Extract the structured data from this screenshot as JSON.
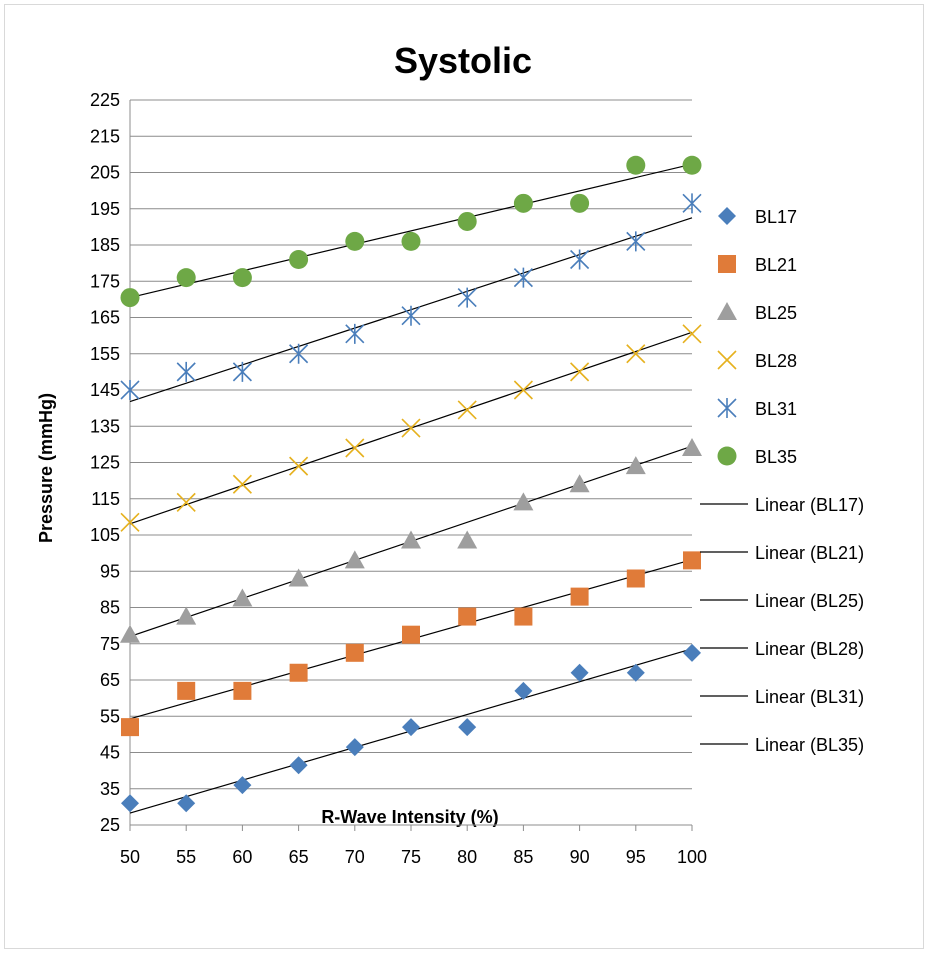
{
  "chart_data": {
    "type": "scatter",
    "title": "Systolic",
    "xlabel": "R-Wave Intensity (%)",
    "ylabel": "Pressure (mmHg)",
    "xlim": [
      50,
      100
    ],
    "ylim": [
      25,
      225
    ],
    "x_ticks": [
      "50",
      "55",
      "60",
      "65",
      "70",
      "75",
      "80",
      "85",
      "90",
      "95",
      "100"
    ],
    "y_ticks": [
      "25",
      "35",
      "45",
      "55",
      "65",
      "75",
      "85",
      "95",
      "105",
      "115",
      "125",
      "135",
      "145",
      "155",
      "165",
      "175",
      "185",
      "195",
      "205",
      "215",
      "225"
    ],
    "grid": "horizontal",
    "legend_position": "right",
    "x": [
      50,
      55,
      60,
      65,
      70,
      75,
      80,
      85,
      90,
      95,
      100
    ],
    "series": [
      {
        "name": "BL17",
        "marker": "diamond",
        "color": "#4a7ebb",
        "values": [
          31,
          31,
          36,
          41.5,
          46.5,
          52,
          52,
          62,
          67,
          67,
          72.5
        ]
      },
      {
        "name": "BL21",
        "marker": "square",
        "color": "#e07b39",
        "values": [
          52,
          62,
          62,
          67,
          72.5,
          77.5,
          82.5,
          82.5,
          88,
          93,
          98
        ]
      },
      {
        "name": "BL25",
        "marker": "triangle",
        "color": "#9e9e9e",
        "values": [
          77.5,
          82.5,
          87.5,
          93,
          98,
          103.5,
          103.5,
          114,
          119,
          124,
          129
        ]
      },
      {
        "name": "BL28",
        "marker": "x",
        "color": "#e6b11e",
        "values": [
          108.5,
          114,
          119,
          124,
          129,
          134.5,
          139.5,
          145,
          150,
          155,
          160.5
        ]
      },
      {
        "name": "BL31",
        "marker": "star",
        "color": "#4a7ebb",
        "values": [
          145,
          150,
          150,
          155,
          160.5,
          165.5,
          170.5,
          176,
          181,
          186,
          196.5
        ]
      },
      {
        "name": "BL35",
        "marker": "circle",
        "color": "#6ea846",
        "values": [
          170.5,
          176,
          176,
          181,
          186,
          186,
          191.5,
          196.5,
          196.5,
          207,
          207
        ]
      }
    ],
    "trendlines": [
      {
        "name": "Linear (BL17)",
        "color": "#000000",
        "y_at_xmin": 28.3,
        "y_at_xmax": 73.6
      },
      {
        "name": "Linear (BL21)",
        "color": "#000000",
        "y_at_xmin": 54.3,
        "y_at_xmax": 98.2
      },
      {
        "name": "Linear (BL25)",
        "color": "#000000",
        "y_at_xmin": 77.0,
        "y_at_xmax": 129.5
      },
      {
        "name": "Linear (BL28)",
        "color": "#000000",
        "y_at_xmin": 108.1,
        "y_at_xmax": 160.9
      },
      {
        "name": "Linear (BL31)",
        "color": "#000000",
        "y_at_xmin": 141.8,
        "y_at_xmax": 192.5
      },
      {
        "name": "Linear (BL35)",
        "color": "#000000",
        "y_at_xmin": 170.5,
        "y_at_xmax": 207.3
      }
    ]
  }
}
